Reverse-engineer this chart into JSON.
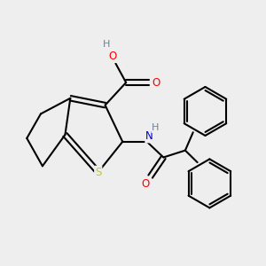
{
  "bg_color": "#eeeeee",
  "atom_colors": {
    "S": "#cccc00",
    "O": "#ff0000",
    "N": "#0000cc",
    "H_gray": "#708090",
    "C": "#000000"
  },
  "bond_color": "#000000",
  "bond_width": 1.5,
  "fig_size": [
    3.0,
    3.0
  ],
  "dpi": 100
}
